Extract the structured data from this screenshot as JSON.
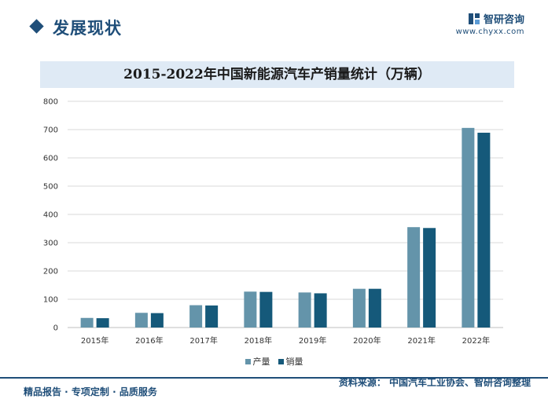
{
  "header": {
    "section_title": "发展现状",
    "brand_name": "智研咨询",
    "brand_url": "www.chyxx.com"
  },
  "colors": {
    "production": "#6494aa",
    "sales": "#15597a",
    "title_band": "#dfeaf5",
    "brand": "#1f4e79"
  },
  "chart_data": {
    "type": "bar",
    "title": "2015-2022年中国新能源汽车产销量统计（万辆）",
    "categories": [
      "2015年",
      "2016年",
      "2017年",
      "2018年",
      "2019年",
      "2020年",
      "2021年",
      "2022年"
    ],
    "series": [
      {
        "name": "产量",
        "values": [
          34,
          52,
          79,
          127,
          124,
          137,
          355,
          706
        ]
      },
      {
        "name": "销量",
        "values": [
          33,
          51,
          78,
          126,
          121,
          137,
          352,
          689
        ]
      }
    ],
    "ylim": [
      0,
      800
    ],
    "yticks": [
      0,
      100,
      200,
      300,
      400,
      500,
      600,
      700,
      800
    ],
    "grid": true,
    "legend_position": "bottom"
  },
  "footer": {
    "left": "精品报告 · 专项定制 · 品质服务",
    "source": "资料来源： 中国汽车工业协会、智研咨询整理"
  }
}
